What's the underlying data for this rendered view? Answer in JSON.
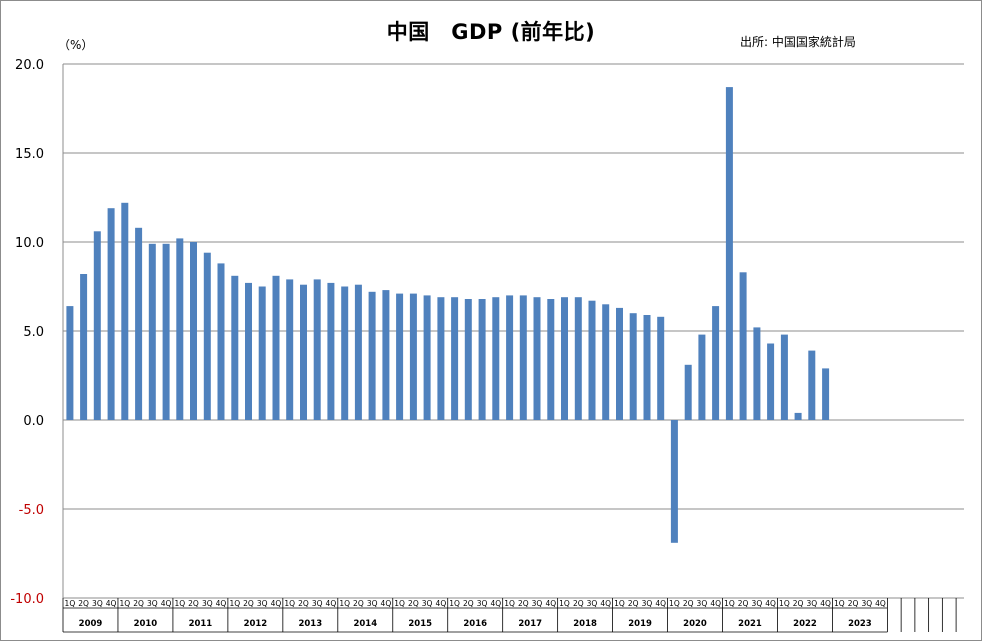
{
  "chart_data": {
    "type": "bar",
    "title": "中国　GDP (前年比)",
    "source": "出所: 中国国家統計局",
    "ylabel": "（%）",
    "ylim": [
      -10,
      20
    ],
    "yticks": [
      "20.0",
      "15.0",
      "10.0",
      "5.0",
      "0.0",
      "-5.0",
      "-10.0"
    ],
    "grid": true,
    "quarter_labels": [
      "1Q",
      "2Q",
      "3Q",
      "4Q"
    ],
    "years": [
      "2009",
      "2010",
      "2011",
      "2012",
      "2013",
      "2014",
      "2015",
      "2016",
      "2017",
      "2018",
      "2019",
      "2020",
      "2021",
      "2022",
      "2023"
    ],
    "bar_color": "#4f81bd",
    "negative_tick_color": "#c00000",
    "series": [
      {
        "values": [
          6.4,
          8.2,
          10.6,
          11.9,
          12.2,
          10.8,
          9.9,
          9.9,
          10.2,
          10.0,
          9.4,
          8.8,
          8.1,
          7.7,
          7.5,
          8.1,
          7.9,
          7.6,
          7.9,
          7.7,
          7.5,
          7.6,
          7.2,
          7.3,
          7.1,
          7.1,
          7.0,
          6.9,
          6.9,
          6.8,
          6.8,
          6.9,
          7.0,
          7.0,
          6.9,
          6.8,
          6.9,
          6.9,
          6.7,
          6.5,
          6.3,
          6.0,
          5.9,
          5.8,
          -6.9,
          3.1,
          4.8,
          6.4,
          18.7,
          8.3,
          5.2,
          4.3,
          4.8,
          0.4,
          3.9,
          2.9
        ]
      }
    ]
  }
}
